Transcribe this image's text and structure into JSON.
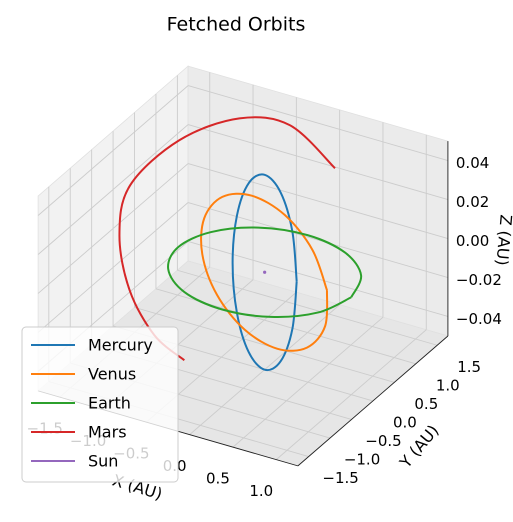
{
  "chart_data": {
    "type": "line3d",
    "title": "Fetched Orbits",
    "x_label": "X (AU)",
    "y_label": "Y (AU)",
    "z_label": "Z (AU)",
    "xlim": [
      -1.75,
      1.25
    ],
    "ylim": [
      -1.75,
      1.75
    ],
    "zlim": [
      -0.05,
      0.05
    ],
    "xticks": [
      {
        "value": -1.5,
        "label": "−1.5"
      },
      {
        "value": -1.0,
        "label": "−1.0"
      },
      {
        "value": -0.5,
        "label": "−0.5"
      },
      {
        "value": 0,
        "label": "0.0"
      },
      0.5,
      {
        "value": 1.0,
        "label": "1.0"
      }
    ],
    "yticks": [
      {
        "value": -1.5,
        "label": "−1.5"
      },
      {
        "value": -1.0,
        "label": "−1.0"
      },
      {
        "value": -0.5,
        "label": "−0.5"
      },
      {
        "value": 0,
        "label": "0.0"
      },
      0.5,
      {
        "value": 1.0,
        "label": "1.0"
      },
      1.5
    ],
    "zticks": [
      {
        "value": -0.04,
        "label": "−0.04"
      },
      {
        "value": -0.02,
        "label": "−0.02"
      },
      {
        "value": 0,
        "label": "0.00"
      },
      0.02,
      0.04
    ],
    "grid": true,
    "legend": "lower left",
    "series": [
      {
        "name": "Mercury",
        "color": "#1f77b4",
        "x": [
          0.37,
          0.32,
          0.185,
          0,
          -0.185,
          -0.32,
          -0.37,
          -0.32,
          -0.185,
          0,
          0.185,
          0.32,
          0.37
        ],
        "y": [
          0,
          0,
          0,
          0,
          0,
          0,
          0,
          0,
          0,
          0,
          0,
          0,
          0
        ],
        "z": [
          0,
          0.025,
          0.0433,
          0.05,
          0.0433,
          0.025,
          0,
          -0.025,
          -0.0433,
          -0.05,
          -0.0433,
          -0.025,
          0
        ]
      },
      {
        "name": "Venus",
        "color": "#ff7f0e",
        "x": [
          0.72,
          0.624,
          0.36,
          0,
          -0.36,
          -0.624,
          -0.72,
          -0.624,
          -0.36,
          0,
          0.36,
          0.624,
          0.72
        ],
        "y": [
          0,
          -0.15,
          -0.26,
          -0.3,
          -0.26,
          -0.15,
          0,
          0.15,
          0.26,
          0.3,
          0.26,
          0.15,
          0
        ],
        "z": [
          0,
          0.0225,
          0.039,
          0.045,
          0.039,
          0.0225,
          0,
          -0.0225,
          -0.039,
          -0.045,
          -0.039,
          -0.0225,
          0
        ]
      },
      {
        "name": "Earth",
        "color": "#2ca02c",
        "x": [
          1,
          0.866,
          0.5,
          0,
          -0.5,
          -0.866,
          -1,
          -0.866,
          -0.5,
          0,
          0.5,
          0.866,
          1
        ],
        "y": [
          0,
          0.5,
          0.866,
          1,
          0.866,
          0.5,
          0,
          -0.5,
          -0.866,
          -1,
          -0.866,
          -0.5,
          0
        ],
        "z": [
          0,
          0,
          0,
          0,
          0,
          0,
          0,
          0,
          0,
          0,
          0,
          0,
          0
        ]
      },
      {
        "name": "Mars",
        "color": "#d62728",
        "x": [
          0.07,
          -0.42,
          -0.89,
          -1.33,
          -1.49,
          -1.35,
          -1.01,
          -0.59,
          -0.19
        ],
        "y": [
          1.5,
          1.44,
          1.21,
          0.7,
          -0.13,
          -0.66,
          -1.11,
          -1.38,
          -1.49
        ],
        "z": [
          0.0257,
          0.0426,
          0.0445,
          0.0374,
          0.0279,
          0.0142,
          -0.001,
          -0.0136,
          -0.0192
        ]
      },
      {
        "name": "Sun",
        "color": "#9467bd",
        "x": [
          0
        ],
        "y": [
          0
        ],
        "z": [
          0
        ]
      }
    ]
  }
}
